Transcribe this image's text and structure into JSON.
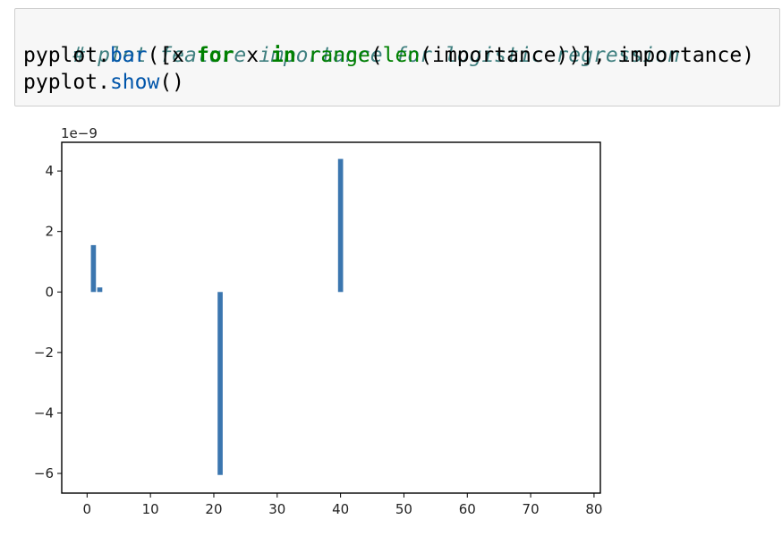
{
  "code_cell": {
    "line1_comment": "# plot feature importance for logistic regression",
    "line2_a": "pyplot.",
    "line2_bar": "bar",
    "line2_b": "([x ",
    "line2_for": "for",
    "line2_c": " x ",
    "line2_in": "in",
    "line2_d": " ",
    "line2_range": "range",
    "line2_e": "(",
    "line2_len": "len",
    "line2_f": "(importance))], importance)",
    "line3_a": "pyplot.",
    "line3_show": "show",
    "line3_b": "()"
  },
  "chart_data": {
    "type": "bar",
    "offset_text": "1e−9",
    "x": [
      1,
      2,
      21,
      40
    ],
    "values": [
      1.55,
      0.15,
      -6.05,
      4.4
    ],
    "values_scale": 1e-09,
    "xlim": [
      -4,
      81
    ],
    "ylim": [
      -6.65,
      4.95
    ],
    "xticks": [
      0,
      10,
      20,
      30,
      40,
      50,
      60,
      70,
      80
    ],
    "xtick_labels": [
      "0",
      "10",
      "20",
      "30",
      "40",
      "50",
      "60",
      "70",
      "80"
    ],
    "yticks": [
      4,
      2,
      0,
      -2,
      -4,
      -6
    ],
    "ytick_labels": [
      "4",
      "2",
      "0",
      "−2",
      "−4",
      "−6"
    ],
    "bar_width": 0.8,
    "bar_color": "#3b76af",
    "grid": false,
    "title": "",
    "xlabel": "",
    "ylabel": ""
  }
}
